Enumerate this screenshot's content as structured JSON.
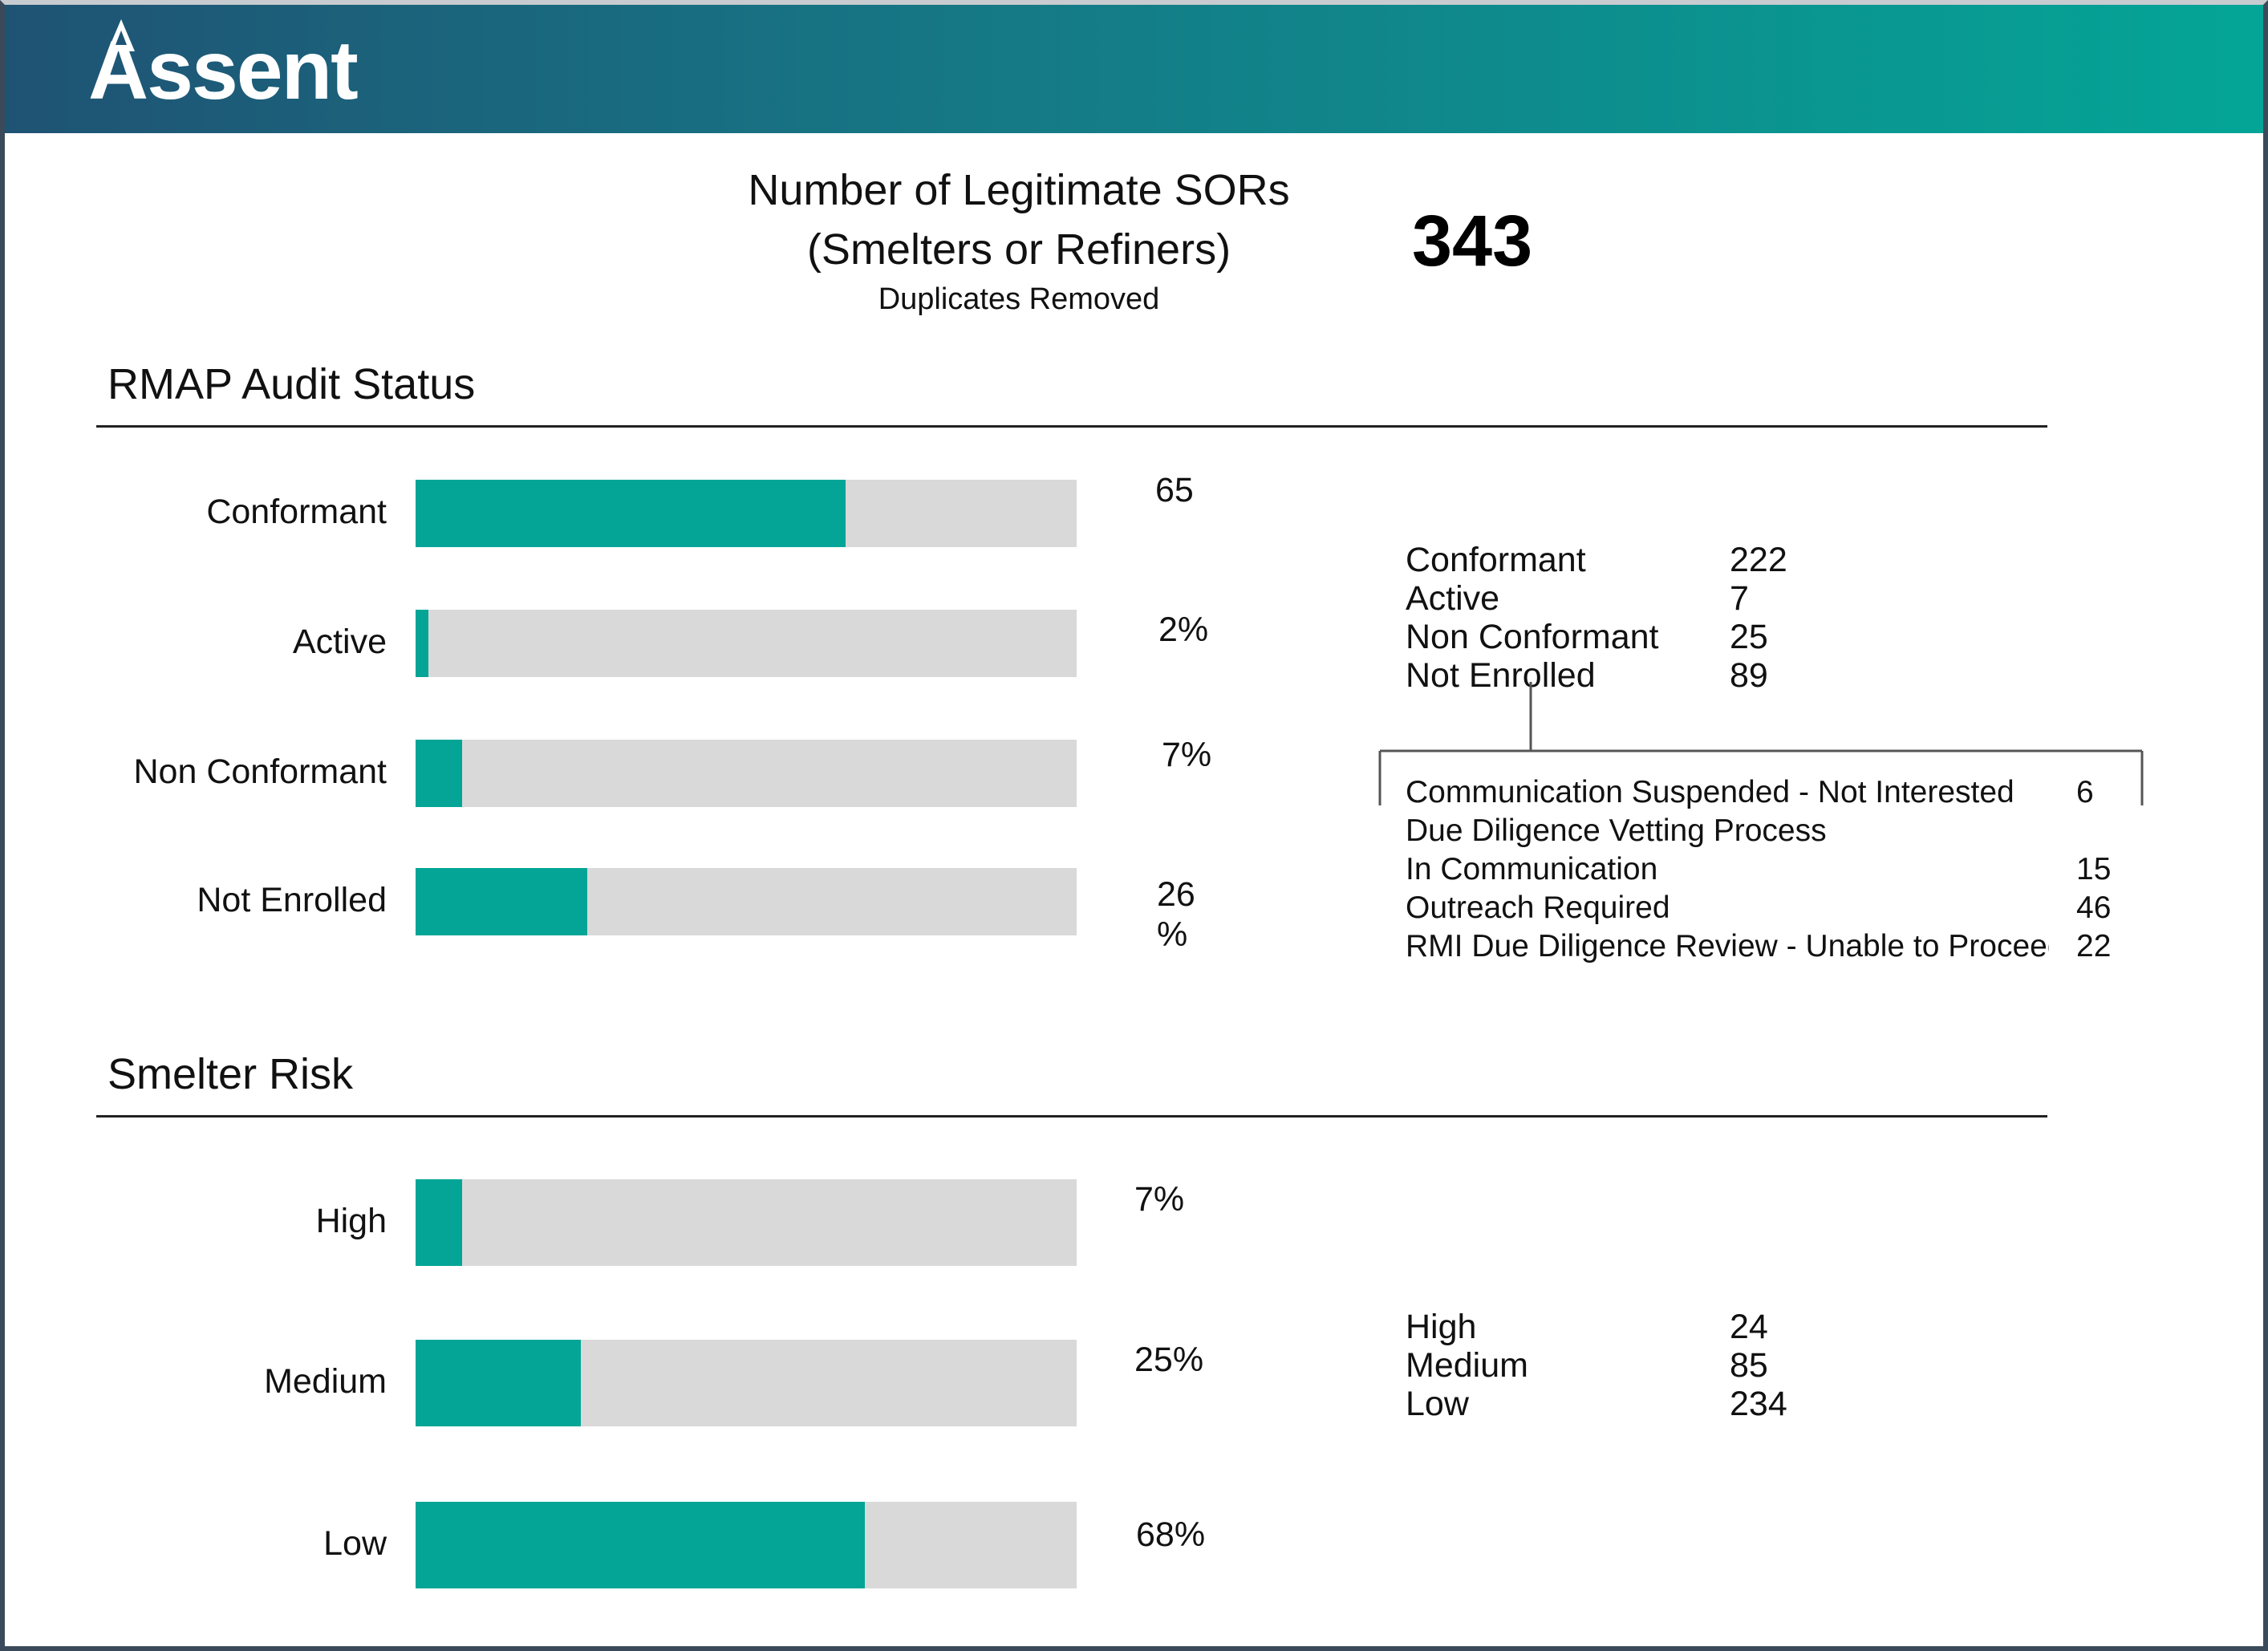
{
  "brand": {
    "logo_text": "Assent",
    "header_gradient": [
      "#1f5374",
      "#04a597"
    ],
    "accent_color": "#04a597",
    "track_color": "#d9d9d9"
  },
  "summary": {
    "title_line1": "Number of Legitimate SORs",
    "title_line2": "(Smelters or Refiners)",
    "subtitle": "Duplicates Removed",
    "total": "343"
  },
  "chart_data": [
    {
      "type": "bar",
      "orientation": "horizontal",
      "title": "RMAP Audit Status",
      "categories": [
        "Conformant",
        "Active",
        "Non Conformant",
        "Not Enrolled"
      ],
      "values": [
        65,
        2,
        7,
        26
      ],
      "value_labels": [
        "65",
        "2%",
        "7%",
        "26 %"
      ],
      "unit": "%",
      "xlim": [
        0,
        100
      ]
    },
    {
      "type": "bar",
      "orientation": "horizontal",
      "title": "Smelter Risk",
      "categories": [
        "High",
        "Medium",
        "Low"
      ],
      "values": [
        7,
        25,
        68
      ],
      "value_labels": [
        "7%",
        "25%",
        "68%"
      ],
      "unit": "%",
      "xlim": [
        0,
        100
      ]
    }
  ],
  "rmap_counts": [
    {
      "label": "Conformant",
      "count": "222"
    },
    {
      "label": "Active",
      "count": "7"
    },
    {
      "label": "Non Conformant",
      "count": "25"
    },
    {
      "label": "Not Enrolled",
      "count": "89"
    }
  ],
  "not_enrolled_breakdown": [
    {
      "label": "Communication Suspended - Not Interested",
      "count": "6"
    },
    {
      "label": "Due Diligence Vetting Process",
      "count": ""
    },
    {
      "label": "In Communication",
      "count": "15"
    },
    {
      "label": "Outreach Required",
      "count": "46"
    },
    {
      "label": "RMI Due Diligence Review - Unable to Proceed",
      "count": "22"
    }
  ],
  "risk_counts": [
    {
      "label": "High",
      "count": "24"
    },
    {
      "label": "Medium",
      "count": "85"
    },
    {
      "label": "Low",
      "count": "234"
    }
  ]
}
